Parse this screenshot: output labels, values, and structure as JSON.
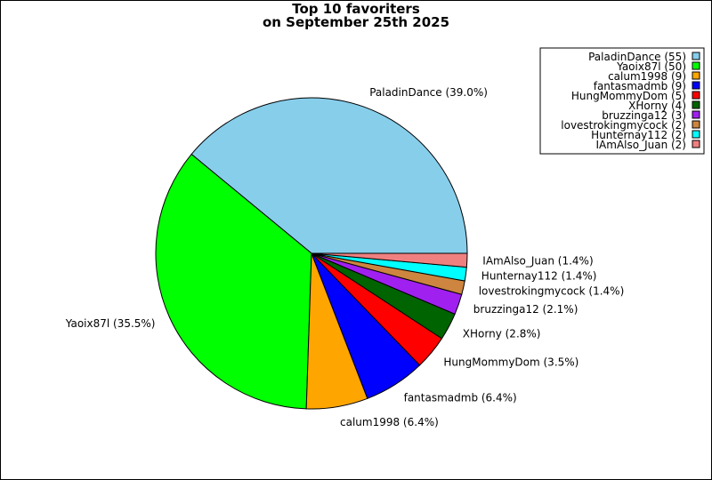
{
  "chart_data": {
    "type": "pie",
    "title_lines": [
      "Top 10 favoriters",
      "on September 25th 2025"
    ],
    "legend_position": "top-right",
    "slices": [
      {
        "label": "PaladinDance",
        "value": 55,
        "percent_label": "PaladinDance (39.0%)",
        "legend_label": "PaladinDance (55)",
        "color": "#87ceeb"
      },
      {
        "label": "Yaoix87l",
        "value": 50,
        "percent_label": "Yaoix87l (35.5%)",
        "legend_label": "Yaoix87l (50)",
        "color": "#00ff00"
      },
      {
        "label": "calum1998",
        "value": 9,
        "percent_label": "calum1998 (6.4%)",
        "legend_label": "calum1998 (9)",
        "color": "#ffa500"
      },
      {
        "label": "fantasmadmb",
        "value": 9,
        "percent_label": "fantasmadmb (6.4%)",
        "legend_label": "fantasmadmb (9)",
        "color": "#0000ff"
      },
      {
        "label": "HungMommyDom",
        "value": 5,
        "percent_label": "HungMommyDom (3.5%)",
        "legend_label": "HungMommyDom (5)",
        "color": "#ff0000"
      },
      {
        "label": "XHorny",
        "value": 4,
        "percent_label": "XHorny (2.8%)",
        "legend_label": "XHorny (4)",
        "color": "#006400"
      },
      {
        "label": "bruzzinga12",
        "value": 3,
        "percent_label": "bruzzinga12 (2.1%)",
        "legend_label": "bruzzinga12 (3)",
        "color": "#a020f0"
      },
      {
        "label": "lovestrokingmycock",
        "value": 2,
        "percent_label": "lovestrokingmycock (1.4%)",
        "legend_label": "lovestrokingmycock (2)",
        "color": "#cd853f"
      },
      {
        "label": "Hunternay112",
        "value": 2,
        "percent_label": "Hunternay112 (1.4%)",
        "legend_label": "Hunternay112 (2)",
        "color": "#00ffff"
      },
      {
        "label": "IAmAlso_Juan",
        "value": 2,
        "percent_label": "IAmAlso_Juan (1.4%)",
        "legend_label": "IAmAlso_Juan (2)",
        "color": "#f08080"
      }
    ]
  }
}
